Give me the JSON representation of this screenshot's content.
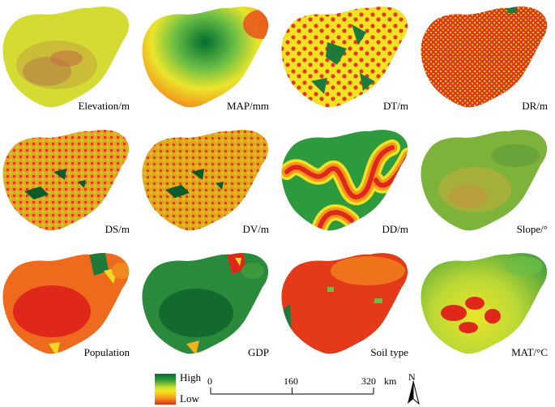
{
  "panels": [
    {
      "label": "Elevation/m"
    },
    {
      "label": "MAP/mm"
    },
    {
      "label": "DT/m"
    },
    {
      "label": "DR/m"
    },
    {
      "label": "DS/m"
    },
    {
      "label": "DV/m"
    },
    {
      "label": "DD/m"
    },
    {
      "label": "Slope/°"
    },
    {
      "label": "Population"
    },
    {
      "label": "GDP"
    },
    {
      "label": "Soil type"
    },
    {
      "label": "MAT/°C"
    }
  ],
  "legend": {
    "high": "High",
    "low": "Low"
  },
  "scale_bar": {
    "ticks": [
      "0",
      "160",
      "320"
    ],
    "unit": "km"
  },
  "north_arrow": {
    "letter": "N"
  },
  "colors": {
    "high": "#006e2e",
    "mid": "#f5e31c",
    "low": "#e02a1a"
  }
}
